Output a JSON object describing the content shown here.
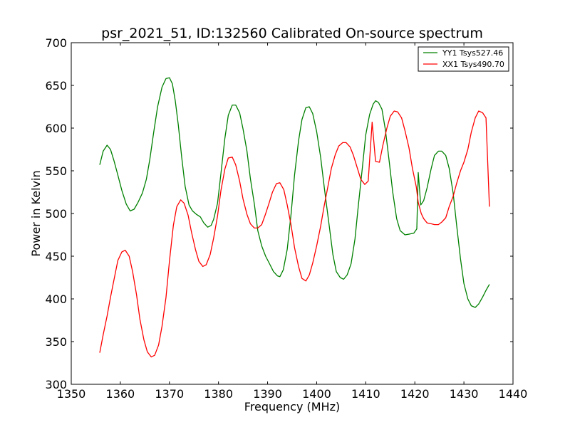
{
  "chart_data": {
    "type": "line",
    "title": "psr_2021_51, ID:132560 Calibrated On-source spectrum",
    "xlabel": "Frequency (MHz)",
    "ylabel": "Power in Kelvin",
    "xlim": [
      1350,
      1440
    ],
    "ylim": [
      300,
      700
    ],
    "xticks": [
      1350,
      1360,
      1370,
      1380,
      1390,
      1400,
      1410,
      1420,
      1430,
      1440
    ],
    "yticks": [
      300,
      350,
      400,
      450,
      500,
      550,
      600,
      650,
      700
    ],
    "grid": false,
    "legend_position": "top-right",
    "series": [
      {
        "name": "YY1 Tsys527.46",
        "color": "#008000",
        "x": [
          1355.8,
          1356.5,
          1357.3,
          1358.0,
          1358.7,
          1359.5,
          1360.3,
          1361.2,
          1362.0,
          1362.8,
          1363.6,
          1364.5,
          1365.3,
          1366.0,
          1366.8,
          1367.6,
          1368.5,
          1369.3,
          1370.0,
          1370.6,
          1371.2,
          1371.8,
          1372.5,
          1373.2,
          1374.0,
          1374.7,
          1375.5,
          1376.3,
          1377.0,
          1377.8,
          1378.5,
          1379.0,
          1379.8,
          1380.5,
          1381.3,
          1382.0,
          1382.8,
          1383.5,
          1384.3,
          1385.0,
          1385.8,
          1386.5,
          1387.3,
          1388.0,
          1388.8,
          1389.6,
          1390.5,
          1391.2,
          1392.0,
          1392.5,
          1393.2,
          1394.0,
          1394.8,
          1395.5,
          1396.3,
          1397.0,
          1397.8,
          1398.5,
          1399.2,
          1400.0,
          1400.8,
          1401.6,
          1402.5,
          1403.3,
          1404.0,
          1404.8,
          1405.5,
          1406.2,
          1407.0,
          1407.8,
          1408.5,
          1409.3,
          1410.0,
          1410.8,
          1411.5,
          1412.0,
          1412.6,
          1413.3,
          1414.0,
          1414.8,
          1415.5,
          1416.3,
          1417.0,
          1418.0,
          1419.0,
          1419.8,
          1420.4,
          1420.7,
          1421.2,
          1421.8,
          1422.5,
          1423.3,
          1424.0,
          1424.8,
          1425.5,
          1426.3,
          1427.0,
          1427.8,
          1428.5,
          1429.3,
          1430.0,
          1430.8,
          1431.5,
          1432.3,
          1433.0,
          1433.8,
          1434.5,
          1435.2
        ],
        "y": [
          557,
          573,
          580,
          575,
          562,
          545,
          527,
          511,
          503,
          505,
          513,
          524,
          540,
          563,
          595,
          625,
          648,
          658,
          659,
          652,
          632,
          604,
          566,
          532,
          510,
          503,
          499,
          496,
          489,
          484,
          486,
          493,
          512,
          547,
          588,
          615,
          627,
          627,
          618,
          599,
          573,
          541,
          511,
          480,
          462,
          450,
          440,
          432,
          427,
          426,
          434,
          458,
          500,
          545,
          585,
          610,
          624,
          625,
          617,
          596,
          566,
          528,
          488,
          452,
          432,
          425,
          423,
          428,
          441,
          470,
          510,
          553,
          592,
          616,
          628,
          632,
          630,
          622,
          598,
          560,
          525,
          494,
          480,
          475,
          476,
          477,
          482,
          548,
          510,
          515,
          530,
          552,
          568,
          573,
          573,
          568,
          553,
          524,
          487,
          447,
          418,
          400,
          392,
          390,
          394,
          402,
          410,
          417
        ]
      },
      {
        "name": "XX1 Tsys490.70",
        "color": "#ff0000",
        "x": [
          1355.8,
          1356.5,
          1357.3,
          1358.0,
          1358.8,
          1359.5,
          1360.3,
          1361.0,
          1361.8,
          1362.5,
          1363.3,
          1364.0,
          1364.8,
          1365.5,
          1366.3,
          1367.0,
          1367.8,
          1368.5,
          1369.3,
          1370.0,
          1370.8,
          1371.5,
          1372.3,
          1373.0,
          1373.8,
          1374.5,
          1375.3,
          1376.0,
          1376.8,
          1377.5,
          1378.3,
          1379.0,
          1379.8,
          1380.5,
          1381.3,
          1382.0,
          1382.8,
          1383.5,
          1384.3,
          1385.0,
          1385.8,
          1386.5,
          1387.3,
          1388.0,
          1388.8,
          1389.5,
          1390.3,
          1391.0,
          1391.8,
          1392.5,
          1393.3,
          1394.0,
          1394.8,
          1395.5,
          1396.3,
          1397.0,
          1397.8,
          1398.5,
          1399.2,
          1400.0,
          1400.8,
          1401.5,
          1402.3,
          1403.0,
          1403.8,
          1404.5,
          1405.3,
          1406.0,
          1406.8,
          1407.5,
          1408.3,
          1409.0,
          1409.8,
          1410.5,
          1411.3,
          1412.0,
          1412.8,
          1413.5,
          1414.3,
          1415.0,
          1415.8,
          1416.5,
          1417.3,
          1418.0,
          1418.8,
          1419.5,
          1420.3,
          1420.7,
          1421.3,
          1421.8,
          1422.5,
          1423.3,
          1424.0,
          1424.8,
          1425.5,
          1426.3,
          1427.0,
          1427.8,
          1428.5,
          1429.3,
          1430.0,
          1430.8,
          1431.5,
          1432.3,
          1433.0,
          1433.8,
          1434.5,
          1435.2
        ],
        "y": [
          337,
          358,
          380,
          402,
          425,
          445,
          455,
          457,
          450,
          432,
          405,
          376,
          352,
          338,
          332,
          334,
          346,
          368,
          402,
          444,
          486,
          508,
          516,
          512,
          498,
          478,
          458,
          444,
          438,
          440,
          452,
          471,
          497,
          527,
          552,
          565,
          566,
          557,
          538,
          517,
          499,
          488,
          483,
          483,
          487,
          498,
          512,
          525,
          535,
          536,
          528,
          510,
          486,
          460,
          438,
          424,
          421,
          428,
          442,
          462,
          485,
          508,
          532,
          553,
          569,
          579,
          583,
          583,
          578,
          568,
          553,
          540,
          534,
          538,
          607,
          561,
          560,
          580,
          600,
          614,
          620,
          619,
          612,
          597,
          577,
          553,
          531,
          513,
          500,
          494,
          489,
          488,
          487,
          487,
          490,
          495,
          508,
          520,
          535,
          550,
          560,
          575,
          595,
          612,
          620,
          618,
          612,
          508
        ]
      }
    ]
  }
}
